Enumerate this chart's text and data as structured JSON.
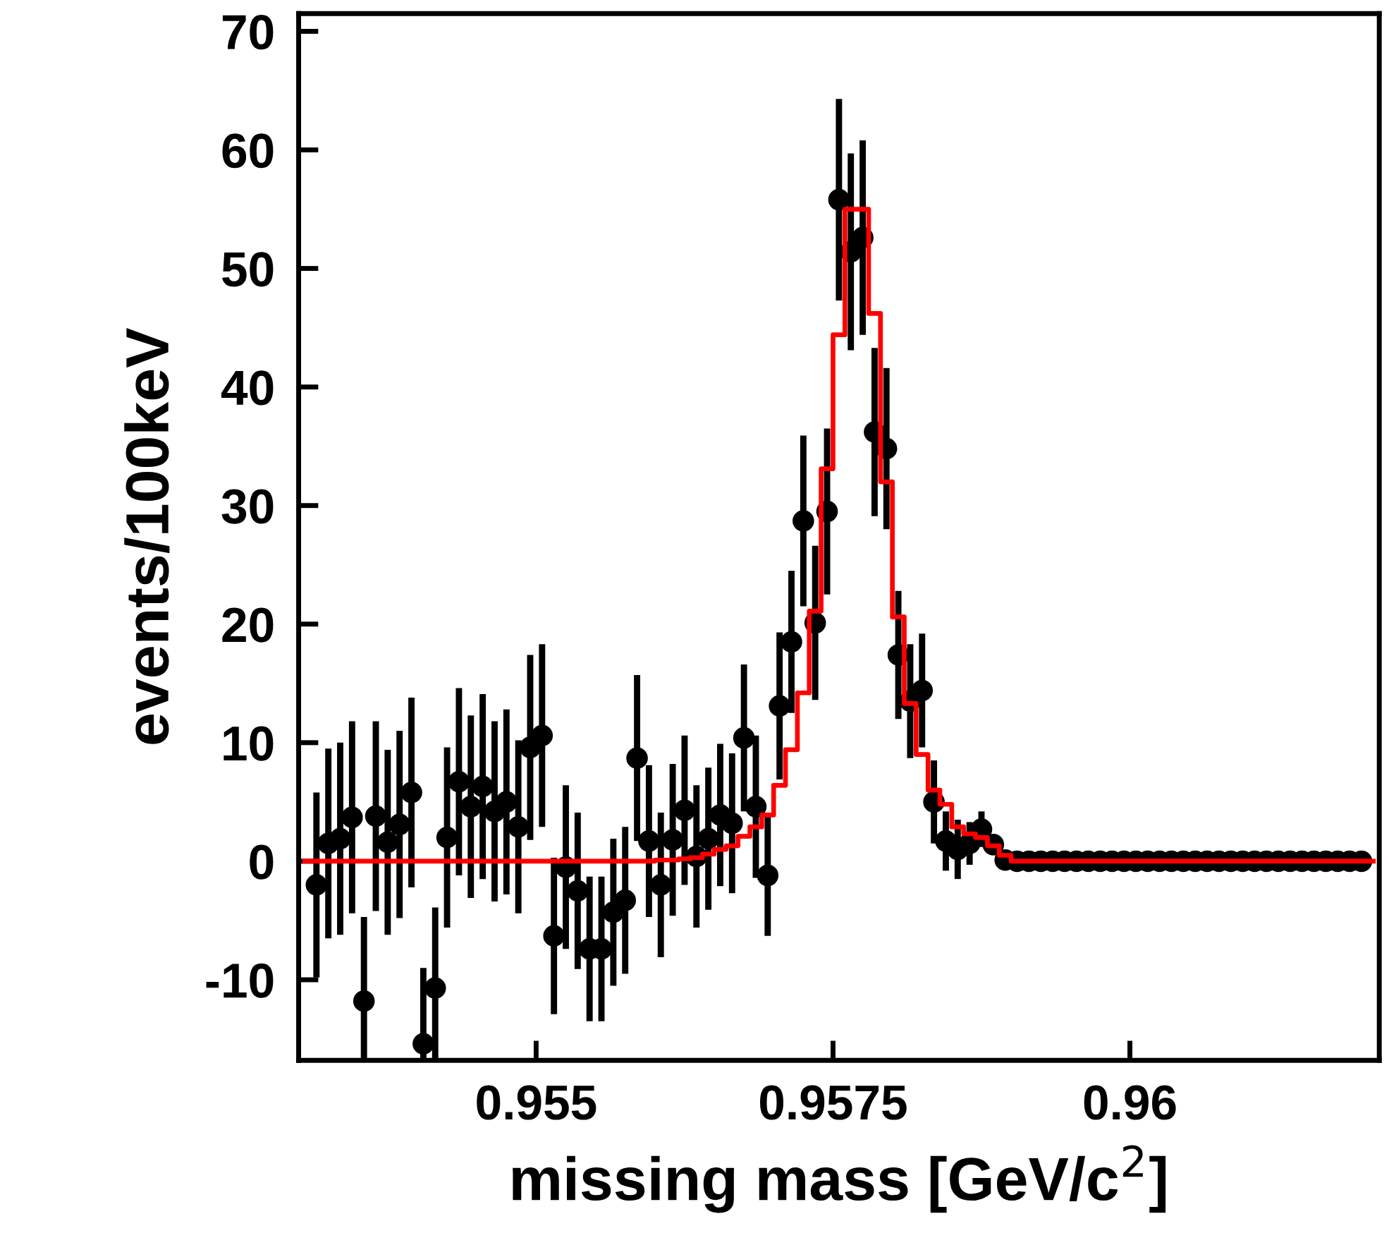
{
  "chart_data": {
    "type": "scatter",
    "xlabel": "missing mass [GeV/c$^{2}$]",
    "ylabel": "events/100keV",
    "xlim": [
      0.953,
      0.9621
    ],
    "ylim": [
      -16.8,
      71.5
    ],
    "xticks": [
      0.955,
      0.9575,
      0.96
    ],
    "yticks": [
      -10,
      0,
      10,
      20,
      30,
      40,
      50,
      60,
      70
    ],
    "grid": false,
    "x": [
      0.95305,
      0.95315,
      0.95325,
      0.95335,
      0.95345,
      0.95355,
      0.95365,
      0.95375,
      0.95385,
      0.95395,
      0.95405,
      0.95415,
      0.95425,
      0.95435,
      0.95445,
      0.95455,
      0.95465,
      0.95475,
      0.95485,
      0.95495,
      0.95505,
      0.95515,
      0.95525,
      0.95535,
      0.95545,
      0.95555,
      0.95565,
      0.95575,
      0.95585,
      0.95595,
      0.95605,
      0.95615,
      0.95625,
      0.95635,
      0.95645,
      0.95655,
      0.95665,
      0.95675,
      0.95685,
      0.95695,
      0.95705,
      0.95715,
      0.95725,
      0.95735,
      0.95745,
      0.95755,
      0.95765,
      0.95775,
      0.95785,
      0.95795,
      0.95805,
      0.95815,
      0.95825,
      0.95835,
      0.95845,
      0.95855,
      0.95865,
      0.95875,
      0.95885,
      0.95895,
      0.95905,
      0.95915,
      0.95925,
      0.95935,
      0.95945,
      0.95955,
      0.95965,
      0.95975,
      0.95985,
      0.95995,
      0.96005,
      0.96015,
      0.96025,
      0.96035,
      0.96045,
      0.96055,
      0.96065,
      0.96075,
      0.96085,
      0.96095,
      0.96105,
      0.96115,
      0.96125,
      0.96135,
      0.96145,
      0.96155,
      0.96165,
      0.96175,
      0.96185,
      0.96195,
      0.96205
    ],
    "series": [
      {
        "type": "step",
        "color": "#ff0000",
        "line_style": "solid",
        "marker": "none",
        "values": [
          0,
          0,
          0,
          0,
          0,
          0,
          0,
          0,
          0,
          0,
          0,
          0,
          0,
          0,
          0,
          0,
          0,
          0,
          0,
          0,
          0,
          0,
          0,
          0,
          0,
          0,
          0,
          0,
          0,
          0,
          0.1,
          0.1,
          0.2,
          0.3,
          0.6,
          1.0,
          1.3,
          2.1,
          2.9,
          3.9,
          6.4,
          9.4,
          14.2,
          21.1,
          33.1,
          44.4,
          55.0,
          55.0,
          46.2,
          32.0,
          20.6,
          13.3,
          9.0,
          6.0,
          4.8,
          2.9,
          2.3,
          2.0,
          1.3,
          0.5,
          0,
          0,
          0,
          0,
          0,
          0,
          0,
          0,
          0,
          0,
          0,
          0,
          0,
          0,
          0,
          0,
          0,
          0,
          0,
          0,
          0,
          0,
          0,
          0,
          0,
          0,
          0,
          0,
          0,
          0,
          0
        ]
      },
      {
        "color": "#000000",
        "marker": "circle",
        "values": [
          null,
          -2.0,
          1.5,
          1.9,
          3.7,
          -11.8,
          3.8,
          1.6,
          3.1,
          5.8,
          -15.4,
          -10.7,
          2.0,
          6.7,
          4.6,
          6.3,
          4.2,
          5.0,
          2.9,
          9.6,
          10.6,
          -6.3,
          -0.5,
          -2.5,
          -7.4,
          -7.4,
          -4.3,
          -3.3,
          8.7,
          1.7,
          -2.0,
          1.8,
          4.3,
          0.4,
          1.9,
          3.9,
          3.2,
          10.4,
          4.6,
          -1.2,
          13.1,
          18.5,
          28.7,
          20.1,
          29.5,
          55.8,
          51.4,
          52.6,
          36.2,
          34.8,
          17.4,
          13.5,
          14.4,
          5.0,
          1.7,
          1.0,
          1.5,
          2.7,
          1.4,
          0.1,
          0,
          0,
          0,
          0,
          0,
          0,
          0,
          0,
          0,
          0,
          0,
          0,
          0,
          0,
          0,
          0,
          0,
          0,
          0,
          0,
          0,
          0,
          0,
          0,
          0,
          0,
          0,
          0,
          0,
          0,
          null
        ],
        "errors": [
          null,
          7.8,
          8.0,
          8.1,
          8.1,
          7.1,
          8.0,
          7.8,
          7.9,
          8.0,
          6.4,
          6.8,
          7.6,
          7.9,
          7.7,
          7.8,
          7.6,
          7.8,
          7.3,
          7.8,
          7.7,
          6.6,
          6.9,
          6.6,
          6.1,
          6.1,
          6.2,
          6.2,
          7.0,
          6.4,
          6.1,
          6.4,
          6.3,
          6.0,
          6.0,
          6.0,
          5.9,
          6.2,
          6.0,
          5.1,
          6.2,
          6.0,
          7.2,
          6.5,
          7.0,
          8.5,
          8.3,
          8.2,
          7.1,
          6.8,
          5.4,
          4.8,
          4.8,
          3.5,
          2.5,
          2.5,
          1.8,
          1.5,
          null,
          null,
          null,
          null,
          null,
          null,
          null,
          null,
          null,
          null,
          null,
          null,
          null,
          null,
          null,
          null,
          null,
          null,
          null,
          null,
          null,
          null,
          null,
          null,
          null,
          null,
          null,
          null,
          null,
          null,
          null,
          null,
          null
        ]
      }
    ]
  }
}
